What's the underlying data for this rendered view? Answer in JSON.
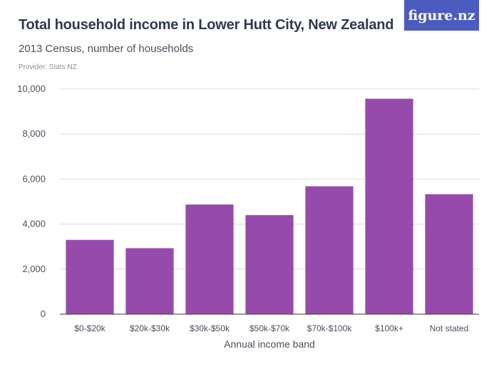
{
  "header": {
    "title": "Total household income in Lower Hutt City, New Zealand",
    "subtitle": "2013 Census, number of households",
    "provider": "Provider: Stats NZ",
    "logo_text": "figure.nz"
  },
  "colors": {
    "bar": "#964bac",
    "grid": "#d9d9d9",
    "axis": "#333333",
    "logo_bg": "#4b5bbf"
  },
  "chart_data": {
    "type": "bar",
    "categories": [
      "$0-$20k",
      "$20k-$30k",
      "$30k-$50k",
      "$50k-$70k",
      "$70k-$100k",
      "$100k+",
      "Not stated"
    ],
    "values": [
      3300,
      2930,
      4870,
      4400,
      5680,
      9570,
      5330
    ],
    "title": "Total household income in Lower Hutt City, New Zealand",
    "subtitle": "2013 Census, number of households",
    "xlabel": "Annual income band",
    "ylabel": "",
    "ylim": [
      0,
      10000
    ],
    "yticks": [
      "0",
      "2,000",
      "4,000",
      "6,000",
      "8,000",
      "10,000"
    ],
    "grid": true,
    "legend": "none"
  }
}
